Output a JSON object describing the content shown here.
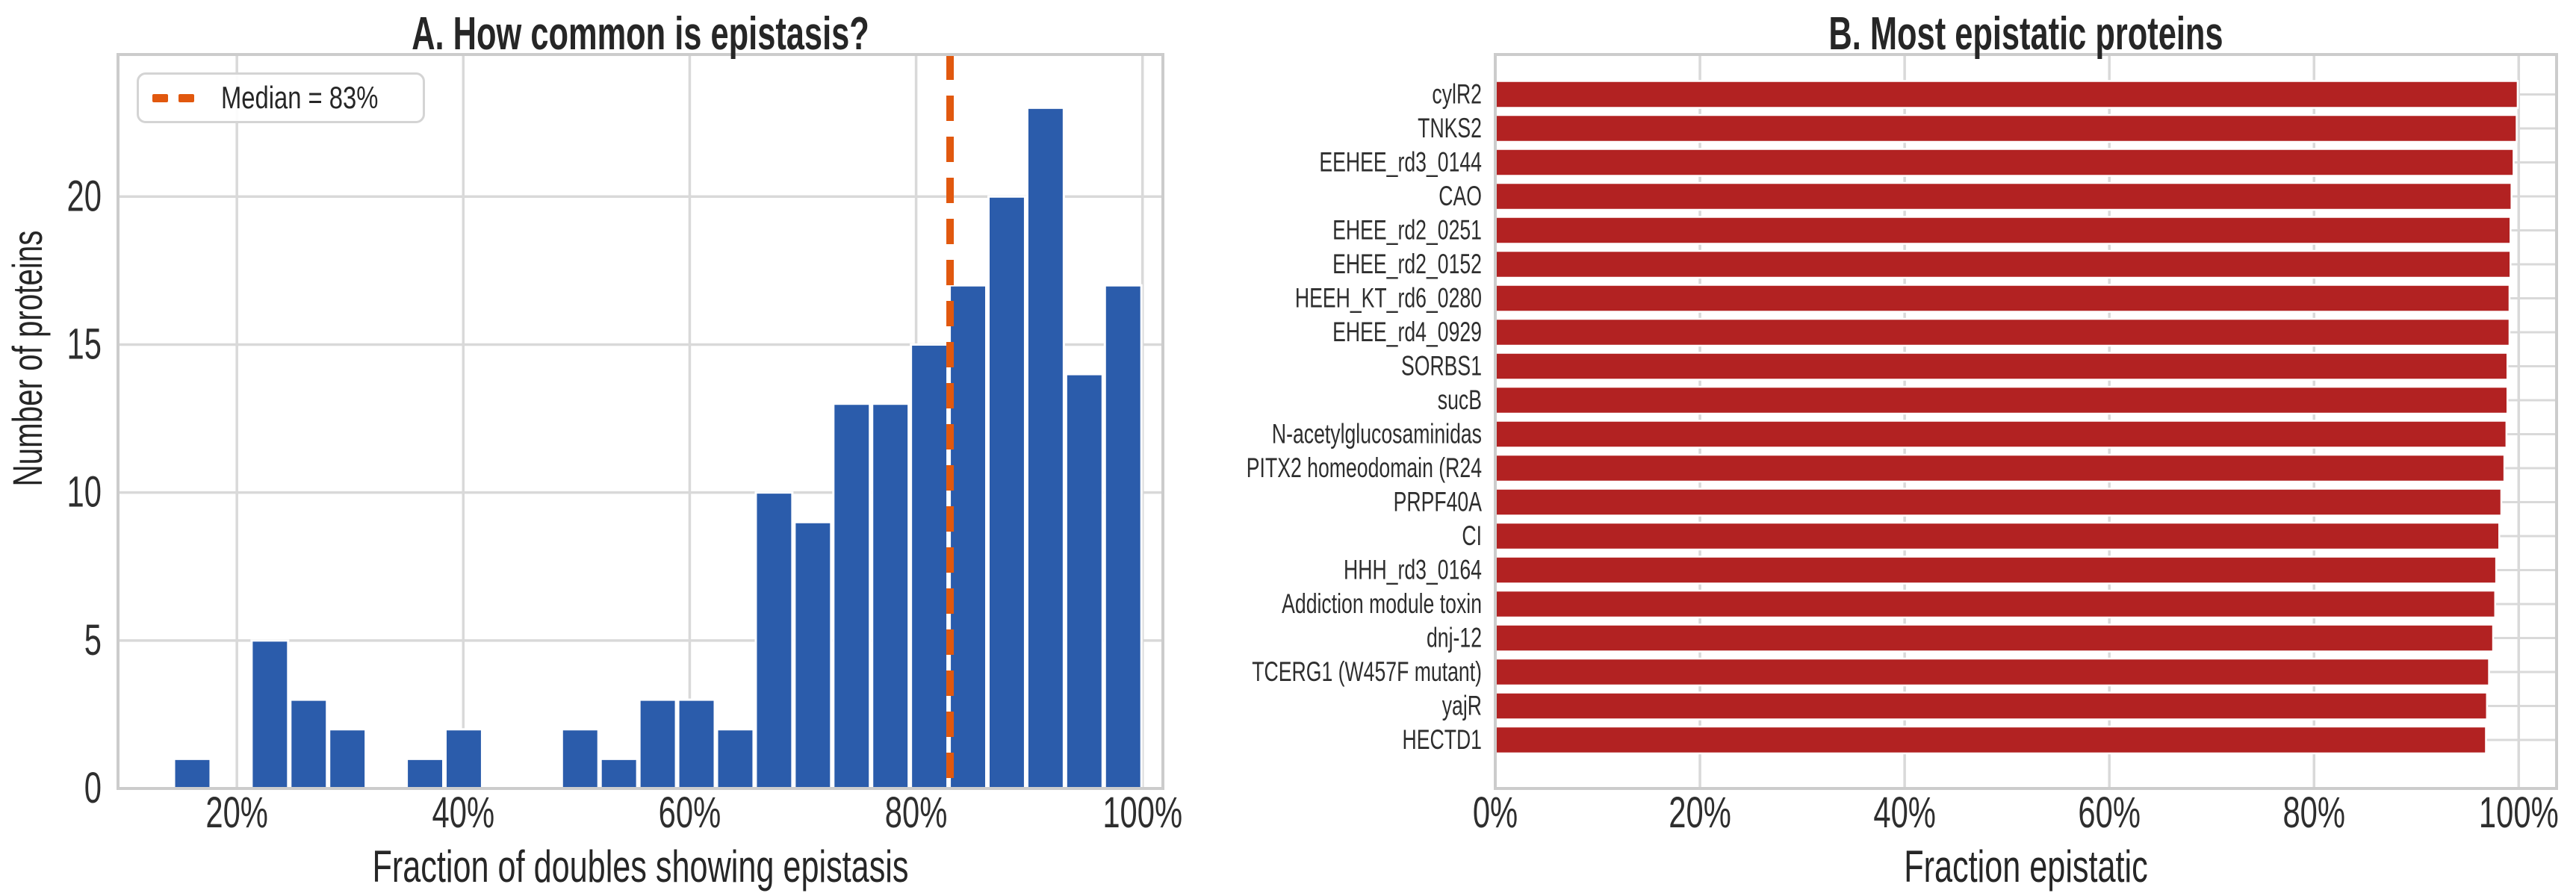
{
  "figure": {
    "background": "#ffffff",
    "style": {
      "grid_color": "#d9d9d9",
      "spine_color": "#cccccc",
      "tick_text_color": "#2e2e2e",
      "title_color": "#262626"
    }
  },
  "chart_data": [
    {
      "type": "bar",
      "subtype": "histogram",
      "title": "A. How common is epistasis?",
      "xlabel": "Fraction of doubles showing epistasis",
      "ylabel": "Number of proteins",
      "bar_color": "#2b5cab",
      "bin_start_pct": 14.35,
      "bin_width_pct": 3.426,
      "counts": [
        1,
        0,
        5,
        3,
        2,
        0,
        1,
        2,
        0,
        0,
        2,
        1,
        3,
        3,
        2,
        10,
        9,
        13,
        13,
        15,
        17,
        20,
        23,
        14,
        17
      ],
      "x_tick_values": [
        20,
        40,
        60,
        80,
        100
      ],
      "x_tick_labels": [
        "20%",
        "40%",
        "60%",
        "80%",
        "100%"
      ],
      "y_tick_values": [
        0,
        5,
        10,
        15,
        20
      ],
      "y_tick_labels": [
        "0",
        "5",
        "10",
        "15",
        "20"
      ],
      "xlim": [
        9.5,
        101.8
      ],
      "ylim": [
        0,
        24.8
      ],
      "grid": true,
      "median_pct": 83,
      "legend": {
        "label": "Median = 83%",
        "line_color": "#e1580e",
        "line_style": "dashed",
        "position": "upper left"
      }
    },
    {
      "type": "bar",
      "subtype": "horizontal",
      "title": "B. Most epistatic proteins",
      "xlabel": "Fraction epistatic",
      "bar_color": "#b22222",
      "categories": [
        "cylR2",
        "TNKS2",
        "EEHEE_rd3_0144",
        "CAO",
        "EHEE_rd2_0251",
        "EHEE_rd2_0152",
        "HEEH_KT_rd6_0280",
        "EHEE_rd4_0929",
        "SORBS1",
        "sucB",
        "N-acetylglucosaminidas",
        "PITX2 homeodomain (R24",
        "PRPF40A",
        "CI",
        "HHH_rd3_0164",
        "Addiction module toxin",
        "dnj-12",
        "TCERG1 (W457F mutant)",
        "yajR",
        "HECTD1"
      ],
      "values": [
        99.9,
        99.8,
        99.5,
        99.3,
        99.2,
        99.2,
        99.1,
        99.1,
        98.9,
        98.9,
        98.8,
        98.6,
        98.3,
        98.1,
        97.8,
        97.7,
        97.5,
        97.1,
        96.9,
        96.8
      ],
      "x_tick_values": [
        0,
        20,
        40,
        60,
        80,
        100
      ],
      "x_tick_labels": [
        "0%",
        "20%",
        "40%",
        "60%",
        "80%",
        "100%"
      ],
      "xlim": [
        0,
        103.7
      ],
      "grid": true
    }
  ]
}
